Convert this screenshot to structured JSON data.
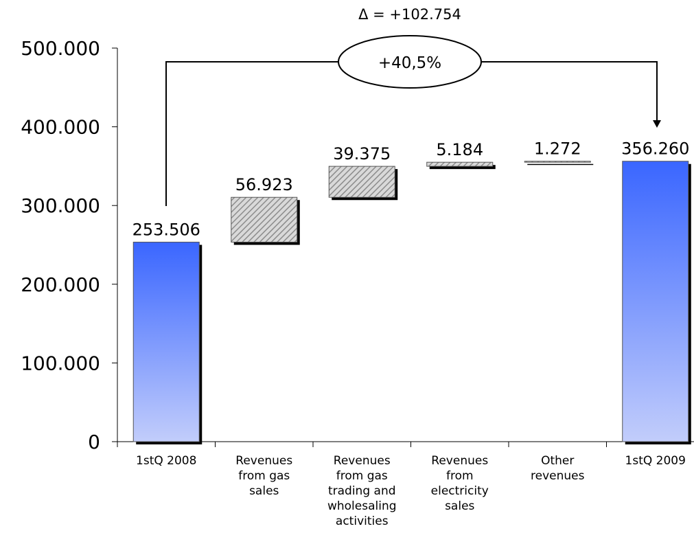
{
  "chart_data": {
    "type": "waterfall",
    "title": "",
    "xlabel": "",
    "ylabel": "",
    "ylim": [
      0,
      500000
    ],
    "yticks": [
      0,
      100000,
      200000,
      300000,
      400000,
      500000
    ],
    "ytick_labels": [
      "0",
      "100.000",
      "200.000",
      "300.000",
      "400.000",
      "500.000"
    ],
    "grid": false,
    "legend": "none",
    "categories": [
      [
        "1stQ 2008"
      ],
      [
        "Revenues",
        "from gas",
        "sales"
      ],
      [
        "Revenues",
        "from gas",
        "trading and",
        "wholesaling",
        "activities"
      ],
      [
        "Revenues",
        "from",
        "electricity",
        "sales"
      ],
      [
        "Other",
        "revenues"
      ],
      [
        "1stQ 2009"
      ]
    ],
    "bars": [
      {
        "kind": "total",
        "start": 0,
        "end": 253506,
        "label": "253.506"
      },
      {
        "kind": "increment",
        "start": 253506,
        "end": 310429,
        "label": "56.923"
      },
      {
        "kind": "increment",
        "start": 310429,
        "end": 349804,
        "label": "39.375"
      },
      {
        "kind": "increment",
        "start": 349804,
        "end": 354988,
        "label": "5.184"
      },
      {
        "kind": "increment",
        "start": 354988,
        "end": 356260,
        "label": "1.272"
      },
      {
        "kind": "total",
        "start": 0,
        "end": 356260,
        "label": "356.260"
      }
    ],
    "annotation": {
      "delta_text": "Δ = +102.754",
      "percent_text": "+40,5%"
    },
    "colors": {
      "total_top": "#3a66ff",
      "total_bottom": "#c2cdfb",
      "hatch_bg": "#d9d9d9",
      "hatch_line": "#8c8c8c"
    }
  }
}
